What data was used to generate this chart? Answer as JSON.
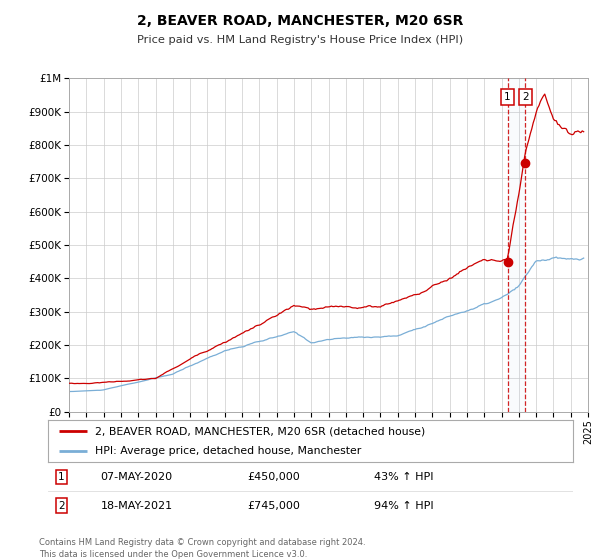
{
  "title": "2, BEAVER ROAD, MANCHESTER, M20 6SR",
  "subtitle": "Price paid vs. HM Land Registry's House Price Index (HPI)",
  "legend_line1": "2, BEAVER ROAD, MANCHESTER, M20 6SR (detached house)",
  "legend_line2": "HPI: Average price, detached house, Manchester",
  "annotation1_label": "1",
  "annotation1_date": "07-MAY-2020",
  "annotation1_price": "£450,000",
  "annotation1_hpi": "43% ↑ HPI",
  "annotation1_year": 2020.35,
  "annotation1_value": 450000,
  "annotation2_label": "2",
  "annotation2_date": "18-MAY-2021",
  "annotation2_price": "£745,000",
  "annotation2_hpi": "94% ↑ HPI",
  "annotation2_year": 2021.38,
  "annotation2_value": 745000,
  "red_color": "#cc0000",
  "blue_color": "#7aaed6",
  "background_color": "#ffffff",
  "grid_color": "#cccccc",
  "footer_text": "Contains HM Land Registry data © Crown copyright and database right 2024.\nThis data is licensed under the Open Government Licence v3.0.",
  "ylim": [
    0,
    1000000
  ],
  "xlim_start": 1995,
  "xlim_end": 2025
}
